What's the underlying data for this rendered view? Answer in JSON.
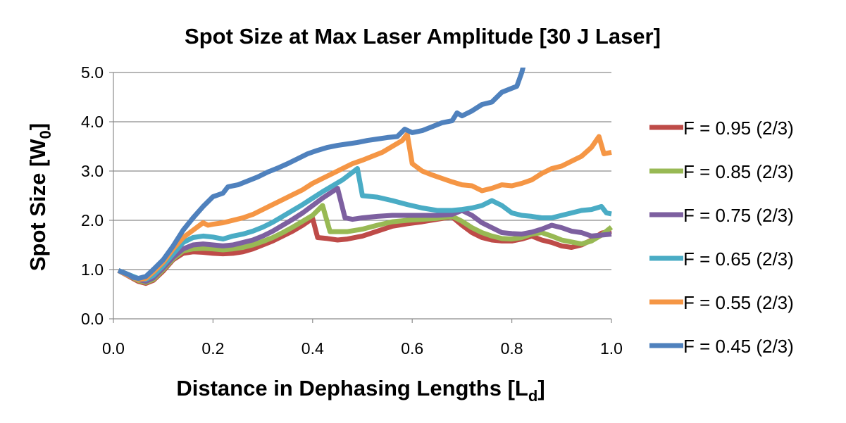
{
  "chart_data": {
    "type": "line",
    "title": "Spot Size at Max Laser Amplitude [30 J Laser]",
    "xlabel": "Distance in Dephasing Lengths [L",
    "xlabel_sub": "d",
    "xlabel_end": "]",
    "ylabel": "Spot Size [W",
    "ylabel_sub": "0",
    "ylabel_end": "]",
    "xlim": [
      0,
      1
    ],
    "ylim": [
      0,
      5
    ],
    "x_ticks": [
      "0.0",
      "0.2",
      "0.4",
      "0.6",
      "0.8",
      "1.0"
    ],
    "y_ticks": [
      "0.0",
      "1.0",
      "2.0",
      "3.0",
      "4.0",
      "5.0"
    ],
    "grid": "horizontal",
    "legend_position": "right",
    "series": [
      {
        "name": "F = 0.95 (2/3)",
        "color": "#be4b48",
        "points": [
          [
            0.01,
            0.98
          ],
          [
            0.03,
            0.87
          ],
          [
            0.05,
            0.76
          ],
          [
            0.065,
            0.72
          ],
          [
            0.08,
            0.78
          ],
          [
            0.1,
            0.97
          ],
          [
            0.12,
            1.2
          ],
          [
            0.14,
            1.33
          ],
          [
            0.16,
            1.36
          ],
          [
            0.18,
            1.35
          ],
          [
            0.2,
            1.33
          ],
          [
            0.22,
            1.32
          ],
          [
            0.24,
            1.33
          ],
          [
            0.26,
            1.36
          ],
          [
            0.28,
            1.42
          ],
          [
            0.3,
            1.5
          ],
          [
            0.32,
            1.58
          ],
          [
            0.34,
            1.68
          ],
          [
            0.36,
            1.78
          ],
          [
            0.38,
            1.9
          ],
          [
            0.4,
            2.04
          ],
          [
            0.41,
            1.65
          ],
          [
            0.43,
            1.63
          ],
          [
            0.45,
            1.6
          ],
          [
            0.47,
            1.62
          ],
          [
            0.5,
            1.68
          ],
          [
            0.53,
            1.78
          ],
          [
            0.56,
            1.88
          ],
          [
            0.59,
            1.93
          ],
          [
            0.62,
            1.97
          ],
          [
            0.65,
            2.02
          ],
          [
            0.68,
            2.07
          ],
          [
            0.7,
            1.9
          ],
          [
            0.72,
            1.75
          ],
          [
            0.74,
            1.65
          ],
          [
            0.76,
            1.6
          ],
          [
            0.78,
            1.58
          ],
          [
            0.8,
            1.58
          ],
          [
            0.82,
            1.62
          ],
          [
            0.84,
            1.68
          ],
          [
            0.86,
            1.6
          ],
          [
            0.88,
            1.55
          ],
          [
            0.9,
            1.48
          ],
          [
            0.92,
            1.45
          ],
          [
            0.94,
            1.5
          ],
          [
            0.96,
            1.6
          ],
          [
            0.98,
            1.74
          ],
          [
            1.0,
            1.78
          ]
        ]
      },
      {
        "name": "F = 0.85 (2/3)",
        "color": "#98b954",
        "points": [
          [
            0.01,
            0.98
          ],
          [
            0.03,
            0.88
          ],
          [
            0.05,
            0.78
          ],
          [
            0.065,
            0.74
          ],
          [
            0.08,
            0.8
          ],
          [
            0.1,
            1.0
          ],
          [
            0.12,
            1.22
          ],
          [
            0.14,
            1.38
          ],
          [
            0.16,
            1.42
          ],
          [
            0.18,
            1.43
          ],
          [
            0.2,
            1.42
          ],
          [
            0.22,
            1.4
          ],
          [
            0.24,
            1.42
          ],
          [
            0.26,
            1.45
          ],
          [
            0.28,
            1.5
          ],
          [
            0.3,
            1.57
          ],
          [
            0.32,
            1.65
          ],
          [
            0.34,
            1.75
          ],
          [
            0.36,
            1.86
          ],
          [
            0.38,
            1.98
          ],
          [
            0.4,
            2.1
          ],
          [
            0.42,
            2.3
          ],
          [
            0.435,
            1.77
          ],
          [
            0.45,
            1.77
          ],
          [
            0.47,
            1.77
          ],
          [
            0.5,
            1.82
          ],
          [
            0.53,
            1.9
          ],
          [
            0.56,
            1.97
          ],
          [
            0.59,
            2.0
          ],
          [
            0.62,
            2.02
          ],
          [
            0.65,
            2.04
          ],
          [
            0.68,
            2.08
          ],
          [
            0.7,
            1.98
          ],
          [
            0.72,
            1.85
          ],
          [
            0.74,
            1.75
          ],
          [
            0.76,
            1.68
          ],
          [
            0.78,
            1.63
          ],
          [
            0.8,
            1.62
          ],
          [
            0.82,
            1.65
          ],
          [
            0.84,
            1.72
          ],
          [
            0.86,
            1.75
          ],
          [
            0.88,
            1.68
          ],
          [
            0.9,
            1.6
          ],
          [
            0.92,
            1.56
          ],
          [
            0.94,
            1.52
          ],
          [
            0.96,
            1.58
          ],
          [
            0.98,
            1.7
          ],
          [
            1.0,
            1.86
          ]
        ]
      },
      {
        "name": "F = 0.75 (2/3)",
        "color": "#7d60a0",
        "points": [
          [
            0.01,
            0.98
          ],
          [
            0.03,
            0.88
          ],
          [
            0.05,
            0.8
          ],
          [
            0.065,
            0.76
          ],
          [
            0.08,
            0.83
          ],
          [
            0.1,
            1.03
          ],
          [
            0.12,
            1.25
          ],
          [
            0.14,
            1.42
          ],
          [
            0.16,
            1.5
          ],
          [
            0.18,
            1.52
          ],
          [
            0.2,
            1.5
          ],
          [
            0.22,
            1.48
          ],
          [
            0.24,
            1.5
          ],
          [
            0.26,
            1.55
          ],
          [
            0.28,
            1.6
          ],
          [
            0.3,
            1.68
          ],
          [
            0.32,
            1.78
          ],
          [
            0.34,
            1.9
          ],
          [
            0.36,
            2.02
          ],
          [
            0.38,
            2.15
          ],
          [
            0.4,
            2.3
          ],
          [
            0.42,
            2.45
          ],
          [
            0.45,
            2.65
          ],
          [
            0.465,
            2.05
          ],
          [
            0.48,
            2.02
          ],
          [
            0.5,
            2.05
          ],
          [
            0.53,
            2.08
          ],
          [
            0.56,
            2.1
          ],
          [
            0.59,
            2.1
          ],
          [
            0.62,
            2.1
          ],
          [
            0.65,
            2.1
          ],
          [
            0.68,
            2.12
          ],
          [
            0.7,
            2.2
          ],
          [
            0.72,
            2.1
          ],
          [
            0.74,
            1.95
          ],
          [
            0.76,
            1.85
          ],
          [
            0.78,
            1.75
          ],
          [
            0.8,
            1.73
          ],
          [
            0.82,
            1.72
          ],
          [
            0.84,
            1.76
          ],
          [
            0.86,
            1.82
          ],
          [
            0.88,
            1.9
          ],
          [
            0.9,
            1.85
          ],
          [
            0.92,
            1.78
          ],
          [
            0.94,
            1.75
          ],
          [
            0.96,
            1.68
          ],
          [
            0.98,
            1.7
          ],
          [
            1.0,
            1.72
          ]
        ]
      },
      {
        "name": "F = 0.65 (2/3)",
        "color": "#4aacc5",
        "points": [
          [
            0.01,
            0.98
          ],
          [
            0.03,
            0.9
          ],
          [
            0.05,
            0.82
          ],
          [
            0.065,
            0.8
          ],
          [
            0.08,
            0.88
          ],
          [
            0.1,
            1.08
          ],
          [
            0.12,
            1.32
          ],
          [
            0.14,
            1.55
          ],
          [
            0.16,
            1.65
          ],
          [
            0.18,
            1.68
          ],
          [
            0.2,
            1.66
          ],
          [
            0.22,
            1.62
          ],
          [
            0.24,
            1.68
          ],
          [
            0.26,
            1.72
          ],
          [
            0.28,
            1.78
          ],
          [
            0.3,
            1.86
          ],
          [
            0.32,
            1.96
          ],
          [
            0.34,
            2.08
          ],
          [
            0.36,
            2.2
          ],
          [
            0.38,
            2.32
          ],
          [
            0.4,
            2.45
          ],
          [
            0.42,
            2.58
          ],
          [
            0.44,
            2.7
          ],
          [
            0.46,
            2.82
          ],
          [
            0.49,
            3.05
          ],
          [
            0.5,
            2.5
          ],
          [
            0.53,
            2.47
          ],
          [
            0.56,
            2.4
          ],
          [
            0.59,
            2.32
          ],
          [
            0.62,
            2.25
          ],
          [
            0.65,
            2.2
          ],
          [
            0.68,
            2.2
          ],
          [
            0.7,
            2.22
          ],
          [
            0.72,
            2.25
          ],
          [
            0.74,
            2.3
          ],
          [
            0.76,
            2.4
          ],
          [
            0.78,
            2.3
          ],
          [
            0.8,
            2.15
          ],
          [
            0.82,
            2.1
          ],
          [
            0.84,
            2.08
          ],
          [
            0.86,
            2.05
          ],
          [
            0.88,
            2.05
          ],
          [
            0.9,
            2.1
          ],
          [
            0.92,
            2.15
          ],
          [
            0.94,
            2.2
          ],
          [
            0.96,
            2.22
          ],
          [
            0.98,
            2.28
          ],
          [
            0.99,
            2.15
          ],
          [
            1.0,
            2.13
          ]
        ]
      },
      {
        "name": "F = 0.55 (2/3)",
        "color": "#f59645",
        "points": [
          [
            0.01,
            0.98
          ],
          [
            0.03,
            0.88
          ],
          [
            0.05,
            0.8
          ],
          [
            0.065,
            0.82
          ],
          [
            0.08,
            0.95
          ],
          [
            0.1,
            1.15
          ],
          [
            0.12,
            1.42
          ],
          [
            0.14,
            1.65
          ],
          [
            0.16,
            1.8
          ],
          [
            0.18,
            1.95
          ],
          [
            0.19,
            1.9
          ],
          [
            0.2,
            1.92
          ],
          [
            0.22,
            1.95
          ],
          [
            0.24,
            2.0
          ],
          [
            0.26,
            2.05
          ],
          [
            0.28,
            2.12
          ],
          [
            0.3,
            2.22
          ],
          [
            0.32,
            2.32
          ],
          [
            0.34,
            2.42
          ],
          [
            0.36,
            2.52
          ],
          [
            0.38,
            2.62
          ],
          [
            0.4,
            2.75
          ],
          [
            0.42,
            2.85
          ],
          [
            0.44,
            2.95
          ],
          [
            0.46,
            3.05
          ],
          [
            0.48,
            3.15
          ],
          [
            0.5,
            3.22
          ],
          [
            0.52,
            3.3
          ],
          [
            0.54,
            3.38
          ],
          [
            0.56,
            3.5
          ],
          [
            0.58,
            3.62
          ],
          [
            0.59,
            3.75
          ],
          [
            0.6,
            3.15
          ],
          [
            0.62,
            3.0
          ],
          [
            0.64,
            2.92
          ],
          [
            0.66,
            2.85
          ],
          [
            0.68,
            2.78
          ],
          [
            0.7,
            2.72
          ],
          [
            0.72,
            2.7
          ],
          [
            0.74,
            2.6
          ],
          [
            0.76,
            2.65
          ],
          [
            0.78,
            2.72
          ],
          [
            0.8,
            2.7
          ],
          [
            0.82,
            2.75
          ],
          [
            0.84,
            2.82
          ],
          [
            0.86,
            2.95
          ],
          [
            0.88,
            3.05
          ],
          [
            0.9,
            3.1
          ],
          [
            0.92,
            3.2
          ],
          [
            0.94,
            3.3
          ],
          [
            0.96,
            3.48
          ],
          [
            0.975,
            3.7
          ],
          [
            0.985,
            3.35
          ],
          [
            1.0,
            3.38
          ]
        ]
      },
      {
        "name": "F = 0.45 (2/3)",
        "color": "#4f81bd",
        "points": [
          [
            0.01,
            0.98
          ],
          [
            0.03,
            0.9
          ],
          [
            0.04,
            0.84
          ],
          [
            0.05,
            0.82
          ],
          [
            0.065,
            0.86
          ],
          [
            0.08,
            1.0
          ],
          [
            0.1,
            1.2
          ],
          [
            0.12,
            1.48
          ],
          [
            0.14,
            1.8
          ],
          [
            0.16,
            2.05
          ],
          [
            0.18,
            2.28
          ],
          [
            0.2,
            2.48
          ],
          [
            0.22,
            2.55
          ],
          [
            0.23,
            2.68
          ],
          [
            0.25,
            2.72
          ],
          [
            0.27,
            2.8
          ],
          [
            0.29,
            2.88
          ],
          [
            0.31,
            2.98
          ],
          [
            0.33,
            3.06
          ],
          [
            0.35,
            3.15
          ],
          [
            0.37,
            3.25
          ],
          [
            0.39,
            3.35
          ],
          [
            0.41,
            3.42
          ],
          [
            0.43,
            3.48
          ],
          [
            0.45,
            3.52
          ],
          [
            0.47,
            3.55
          ],
          [
            0.49,
            3.58
          ],
          [
            0.51,
            3.62
          ],
          [
            0.53,
            3.65
          ],
          [
            0.55,
            3.68
          ],
          [
            0.57,
            3.7
          ],
          [
            0.585,
            3.85
          ],
          [
            0.6,
            3.78
          ],
          [
            0.62,
            3.82
          ],
          [
            0.64,
            3.9
          ],
          [
            0.66,
            3.98
          ],
          [
            0.68,
            4.02
          ],
          [
            0.69,
            4.18
          ],
          [
            0.7,
            4.12
          ],
          [
            0.72,
            4.22
          ],
          [
            0.74,
            4.35
          ],
          [
            0.76,
            4.4
          ],
          [
            0.78,
            4.6
          ],
          [
            0.8,
            4.68
          ],
          [
            0.81,
            4.72
          ],
          [
            0.82,
            5.0
          ],
          [
            0.825,
            5.2
          ]
        ]
      }
    ]
  }
}
